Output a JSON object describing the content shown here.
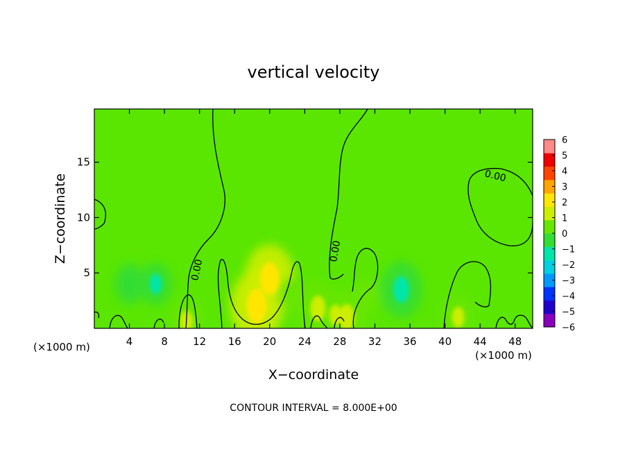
{
  "chart_data": {
    "type": "heatmap",
    "title": "vertical velocity",
    "xlabel": "X−coordinate",
    "ylabel": "Z−coordinate",
    "x_unit": "(×1000 m)",
    "z_unit": "(×1000 m)",
    "xlim": [
      0,
      50
    ],
    "ylim": [
      0,
      19.8
    ],
    "x_ticks": [
      4,
      8,
      12,
      16,
      20,
      24,
      28,
      32,
      36,
      40,
      44,
      48
    ],
    "y_ticks": [
      5,
      10,
      15
    ],
    "colorbar": {
      "ticks": [
        "6",
        "5",
        "4",
        "3",
        "2",
        "1",
        "0",
        "−1",
        "−2",
        "−3",
        "−4",
        "−5",
        "−6"
      ],
      "range": [
        -6,
        6
      ],
      "colors": [
        "#8800bb",
        "#2200cc",
        "#0033ff",
        "#0099ff",
        "#00d0e0",
        "#00e6aa",
        "#33dd33",
        "#66e600",
        "#ccee00",
        "#ffe600",
        "#ffa500",
        "#ff4400",
        "#ee0000",
        "#ff8888"
      ]
    },
    "contour_level": "0.00",
    "contour_interval_label": "CONTOUR INTERVAL = 8.000E+00",
    "features": [
      {
        "x": 20.0,
        "z": 4.5,
        "w": 2.2
      },
      {
        "x": 18.5,
        "z": 2.0,
        "w": 2.4
      },
      {
        "x": 25.5,
        "z": 1.8,
        "w": 1.5
      },
      {
        "x": 28.8,
        "z": 1.0,
        "w": 1.6
      },
      {
        "x": 27.5,
        "z": 1.2,
        "w": 1.0
      },
      {
        "x": 22.5,
        "z": 3.0,
        "w": 0.6
      },
      {
        "x": 35.0,
        "z": 3.5,
        "w": -1.6
      },
      {
        "x": 7.0,
        "z": 4.0,
        "w": -0.9
      },
      {
        "x": 4.0,
        "z": 4.0,
        "w": -0.8
      },
      {
        "x": 41.5,
        "z": 1.0,
        "w": 1.0
      },
      {
        "x": 10.5,
        "z": 0.6,
        "w": 1.1
      },
      {
        "x": 31.0,
        "z": 3.0,
        "w": 0.5
      }
    ]
  }
}
